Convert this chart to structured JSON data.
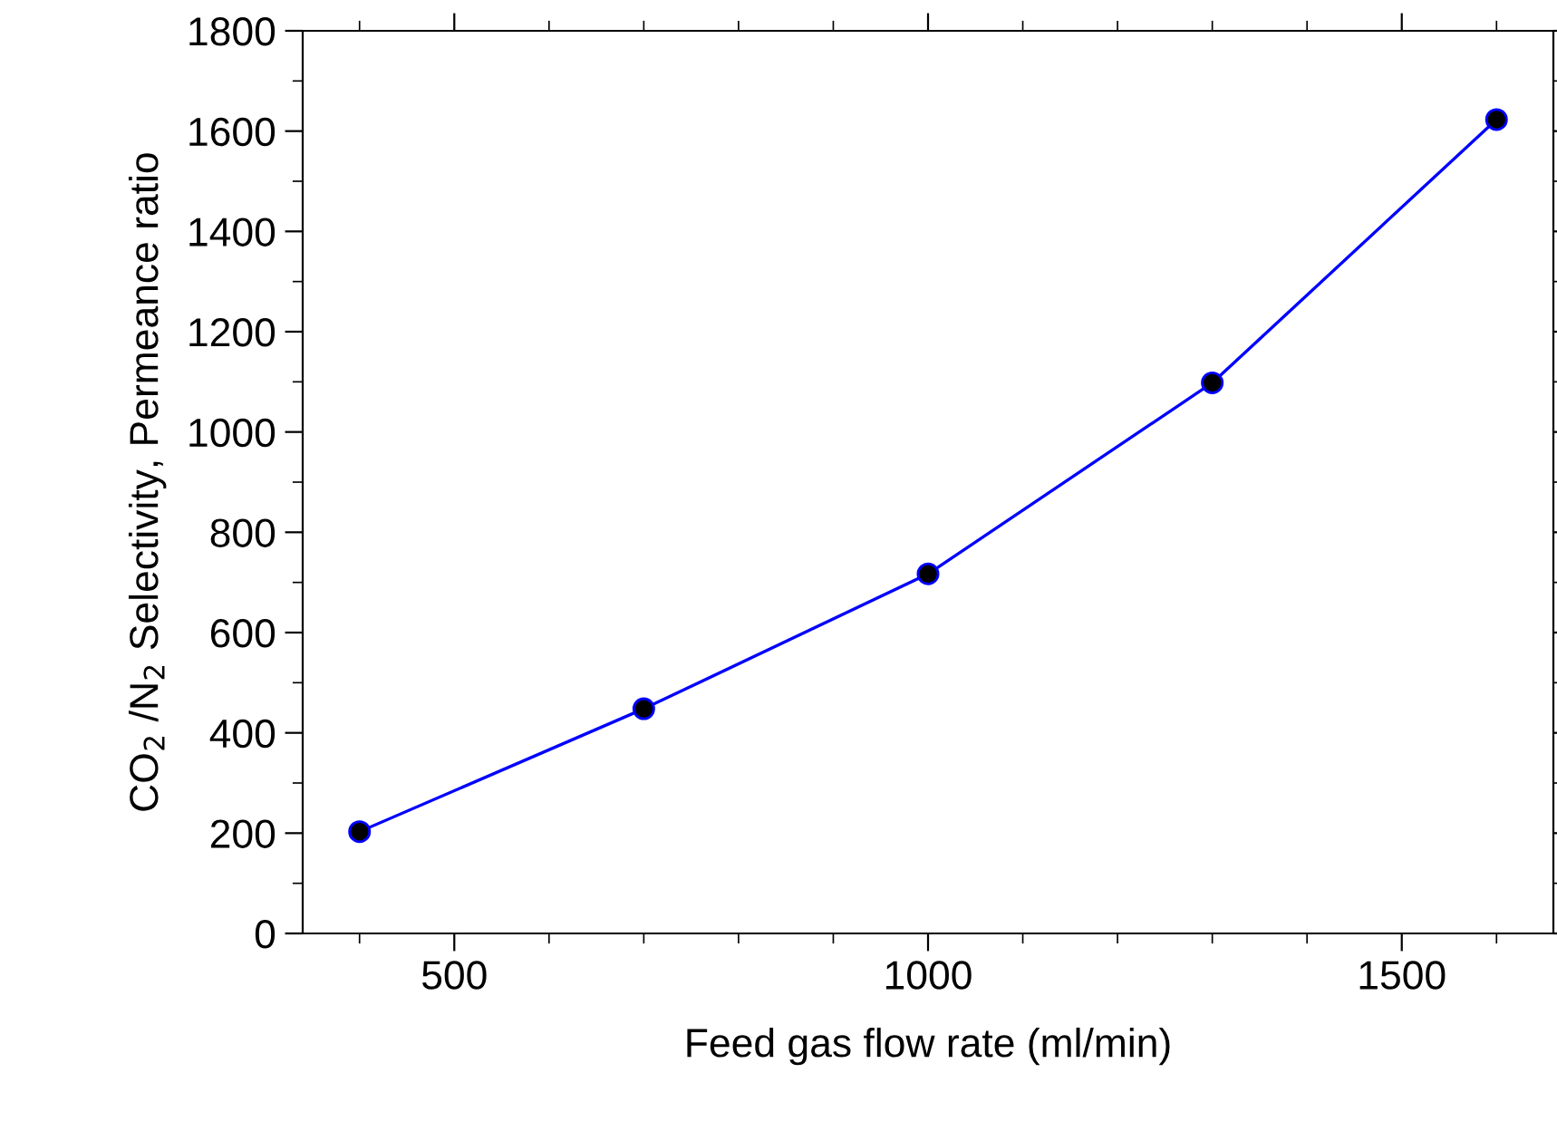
{
  "chart_data": {
    "type": "line",
    "xlabel": "Feed gas flow rate (ml/min)",
    "ylabel": "CO$_{2}$ /N$_{2}$ Selectivity, Permeance ratio",
    "x": [
      400,
      700,
      1000,
      1300,
      1600
    ],
    "series": [
      {
        "color": "#0000ff",
        "values": [
          203,
          448,
          717,
          1098,
          1623
        ]
      }
    ],
    "marker": "circle",
    "line_style": "solid",
    "xlim": [
      340,
      1660
    ],
    "xticks": [
      500,
      1000,
      1500
    ],
    "ylim": [
      0,
      1800
    ],
    "yticks": [
      0,
      200,
      400,
      600,
      800,
      1000,
      1200,
      1400,
      1600,
      1800
    ],
    "grid": false,
    "legend": false
  }
}
